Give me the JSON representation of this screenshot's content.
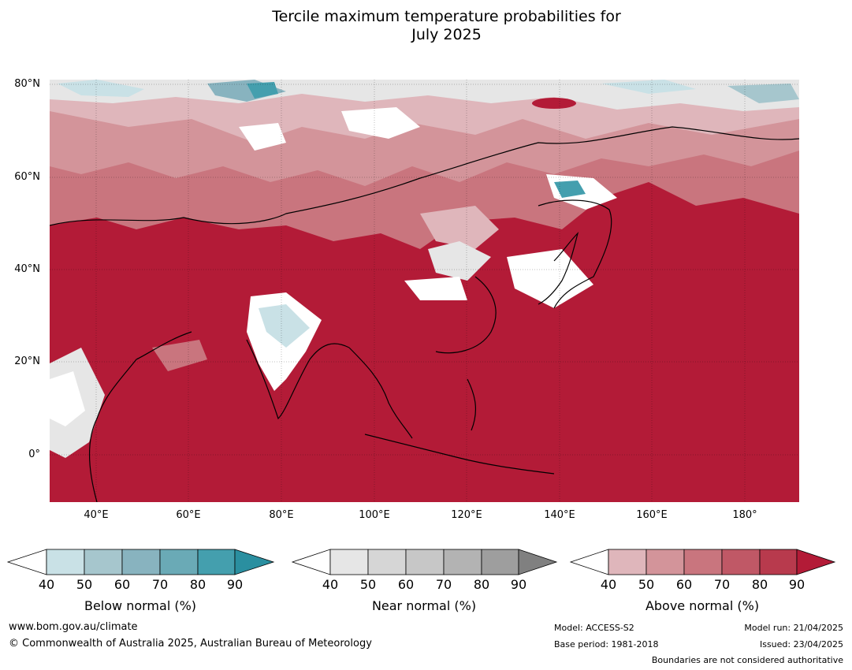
{
  "title_line1": "Tercile maximum temperature probabilities for",
  "title_line2": "July 2025",
  "lat_ticks": [
    "80°N",
    "60°N",
    "40°N",
    "20°N",
    "0°"
  ],
  "lon_ticks": [
    "40°E",
    "60°E",
    "80°E",
    "100°E",
    "120°E",
    "140°E",
    "160°E",
    "180°"
  ],
  "colors": {
    "above": [
      "#dfb6bb",
      "#d3949a",
      "#c9757e",
      "#c05866",
      "#b83a4d",
      "#b31b37"
    ],
    "near": [
      "#e6e6e6",
      "#d6d6d6",
      "#c7c7c7",
      "#b3b3b3",
      "#9e9e9e",
      "#808080"
    ],
    "below": [
      "#c9e1e6",
      "#a6c6cd",
      "#88b3bf",
      "#6aaab6",
      "#449fae",
      "#2a8fa0"
    ],
    "ocean_dominant": "#b31b37",
    "coast": "#000000",
    "borders": "#7a7a7a"
  },
  "legends": [
    {
      "label": "Below normal (%)",
      "ticks": [
        "40",
        "50",
        "60",
        "70",
        "80",
        "90"
      ]
    },
    {
      "label": "Near normal (%)",
      "ticks": [
        "40",
        "50",
        "60",
        "70",
        "80",
        "90"
      ]
    },
    {
      "label": "Above normal (%)",
      "ticks": [
        "40",
        "50",
        "60",
        "70",
        "80",
        "90"
      ]
    }
  ],
  "footer": {
    "url": "www.bom.gov.au/climate",
    "copyright": "© Commonwealth of Australia 2025, Australian Bureau of Meteorology",
    "model": "Model: ACCESS-S2",
    "base_period": "Base period: 1981-2018",
    "model_run": "Model run: 21/04/2025",
    "issued": "Issued: 23/04/2025",
    "disclaimer": "Boundaries are not considered authoritative"
  }
}
